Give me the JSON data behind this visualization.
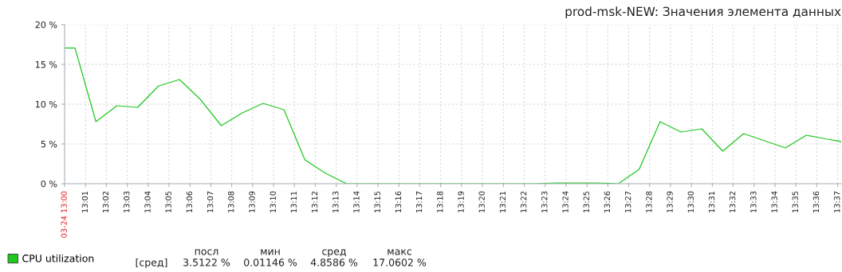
{
  "chart_data": {
    "type": "line",
    "title": "prod-msk-NEW: Значения элемента данных",
    "x": [
      13.0,
      13.0083,
      13.025,
      13.0417,
      13.0583,
      13.075,
      13.0917,
      13.1083,
      13.125,
      13.1417,
      13.1583,
      13.175,
      13.1917,
      13.2083,
      13.225,
      13.2417,
      13.2583,
      13.275,
      13.2917,
      13.3083,
      13.325,
      13.3417,
      13.3583,
      13.375,
      13.3917,
      13.4083,
      13.425,
      13.4417,
      13.4583,
      13.475,
      13.4917,
      13.5083,
      13.525,
      13.5417,
      13.5583,
      13.575,
      13.5917,
      13.6083,
      13.6195
    ],
    "series": [
      {
        "name": "CPU utilization",
        "color": "#1ec81e",
        "values": [
          17.06,
          17.06,
          7.8,
          9.8,
          9.6,
          12.3,
          13.1,
          10.6,
          7.3,
          8.9,
          10.1,
          9.3,
          3.0,
          1.3,
          0,
          0,
          0,
          0,
          0,
          0,
          0,
          0,
          0,
          0,
          0.1,
          0.1,
          0.1,
          0,
          1.8,
          7.8,
          6.5,
          6.9,
          4.1,
          6.3,
          5.4,
          4.5,
          6.1,
          5.6,
          5.3
        ]
      }
    ],
    "xlim": [
      13.0,
      13.6195
    ],
    "xticks": [
      {
        "value": 13.0,
        "label": "03-24 13:00"
      },
      {
        "value": 13.0167,
        "label": "13:01"
      },
      {
        "value": 13.0333,
        "label": "13:02"
      },
      {
        "value": 13.05,
        "label": "13:03"
      },
      {
        "value": 13.0667,
        "label": "13:04"
      },
      {
        "value": 13.0833,
        "label": "13:05"
      },
      {
        "value": 13.1,
        "label": "13:06"
      },
      {
        "value": 13.1167,
        "label": "13:07"
      },
      {
        "value": 13.1333,
        "label": "13:08"
      },
      {
        "value": 13.15,
        "label": "13:09"
      },
      {
        "value": 13.1667,
        "label": "13:10"
      },
      {
        "value": 13.1833,
        "label": "13:11"
      },
      {
        "value": 13.2,
        "label": "13:12"
      },
      {
        "value": 13.2167,
        "label": "13:13"
      },
      {
        "value": 13.2333,
        "label": "13:14"
      },
      {
        "value": 13.25,
        "label": "13:15"
      },
      {
        "value": 13.2667,
        "label": "13:16"
      },
      {
        "value": 13.2833,
        "label": "13:17"
      },
      {
        "value": 13.3,
        "label": "13:18"
      },
      {
        "value": 13.3167,
        "label": "13:19"
      },
      {
        "value": 13.3333,
        "label": "13:20"
      },
      {
        "value": 13.35,
        "label": "13:21"
      },
      {
        "value": 13.3667,
        "label": "13:22"
      },
      {
        "value": 13.3833,
        "label": "13:23"
      },
      {
        "value": 13.4,
        "label": "13:24"
      },
      {
        "value": 13.4167,
        "label": "13:25"
      },
      {
        "value": 13.4333,
        "label": "13:26"
      },
      {
        "value": 13.45,
        "label": "13:27"
      },
      {
        "value": 13.4667,
        "label": "13:28"
      },
      {
        "value": 13.4833,
        "label": "13:29"
      },
      {
        "value": 13.5,
        "label": "13:30"
      },
      {
        "value": 13.5167,
        "label": "13:31"
      },
      {
        "value": 13.5333,
        "label": "13:32"
      },
      {
        "value": 13.55,
        "label": "13:33"
      },
      {
        "value": 13.5667,
        "label": "13:34"
      },
      {
        "value": 13.5833,
        "label": "13:35"
      },
      {
        "value": 13.6,
        "label": "13:36"
      },
      {
        "value": 13.6167,
        "label": "13:37"
      }
    ],
    "ylim": [
      0,
      20
    ],
    "yticks": [
      {
        "value": 0,
        "label": "0 %"
      },
      {
        "value": 5,
        "label": "5 %"
      },
      {
        "value": 10,
        "label": "10 %"
      },
      {
        "value": 15,
        "label": "15 %"
      },
      {
        "value": 20,
        "label": "20 %"
      }
    ],
    "grid": true,
    "legend": "bottom left",
    "marker": "none",
    "line_style": "solid",
    "annotations": [
      "[сред]",
      "посл",
      "3.5122 %",
      "мин",
      "0.01146 %",
      "сред",
      "4.8586 %",
      "макс",
      "17.0602 %"
    ]
  }
}
